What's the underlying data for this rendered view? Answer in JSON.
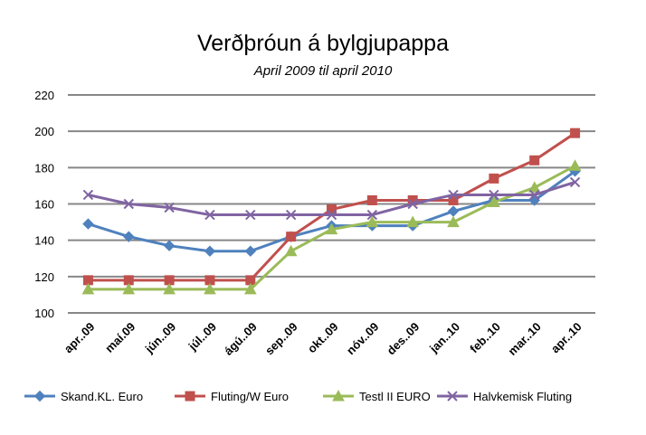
{
  "chart_data": {
    "type": "line",
    "title": "Verðþróun á bylgjupappa",
    "subtitle": "April 2009 til april 2010",
    "xlabel": "",
    "ylabel": "",
    "ylim": [
      100,
      220
    ],
    "yticks": [
      100,
      120,
      140,
      160,
      180,
      200,
      220
    ],
    "grid": true,
    "legend": "bottom",
    "categories": [
      "apr..09",
      "maí.09",
      "jún..09",
      "júl..09",
      "ágú..09",
      "sep..09",
      "okt..09",
      "nóv..09",
      "des..09",
      "jan..10",
      "feb..10",
      "mar..10",
      "apr..10"
    ],
    "series": [
      {
        "name": "Skand.KL. Euro",
        "color": "#4F81BD",
        "marker": "diamond",
        "values": [
          149,
          142,
          137,
          134,
          134,
          142,
          148,
          148,
          148,
          156,
          162,
          162,
          178
        ]
      },
      {
        "name": "Fluting/W Euro",
        "color": "#C0504D",
        "marker": "square",
        "values": [
          118,
          118,
          118,
          118,
          118,
          142,
          157,
          162,
          162,
          162,
          174,
          184,
          199
        ]
      },
      {
        "name": "Testl II EURO",
        "color": "#9BBB59",
        "marker": "triangle",
        "values": [
          113,
          113,
          113,
          113,
          113,
          134,
          146,
          150,
          150,
          150,
          161,
          169,
          181
        ]
      },
      {
        "name": "Halvkemisk Fluting",
        "color": "#8064A2",
        "marker": "x",
        "values": [
          165,
          160,
          158,
          154,
          154,
          154,
          154,
          154,
          160,
          165,
          165,
          165,
          172
        ]
      }
    ]
  }
}
